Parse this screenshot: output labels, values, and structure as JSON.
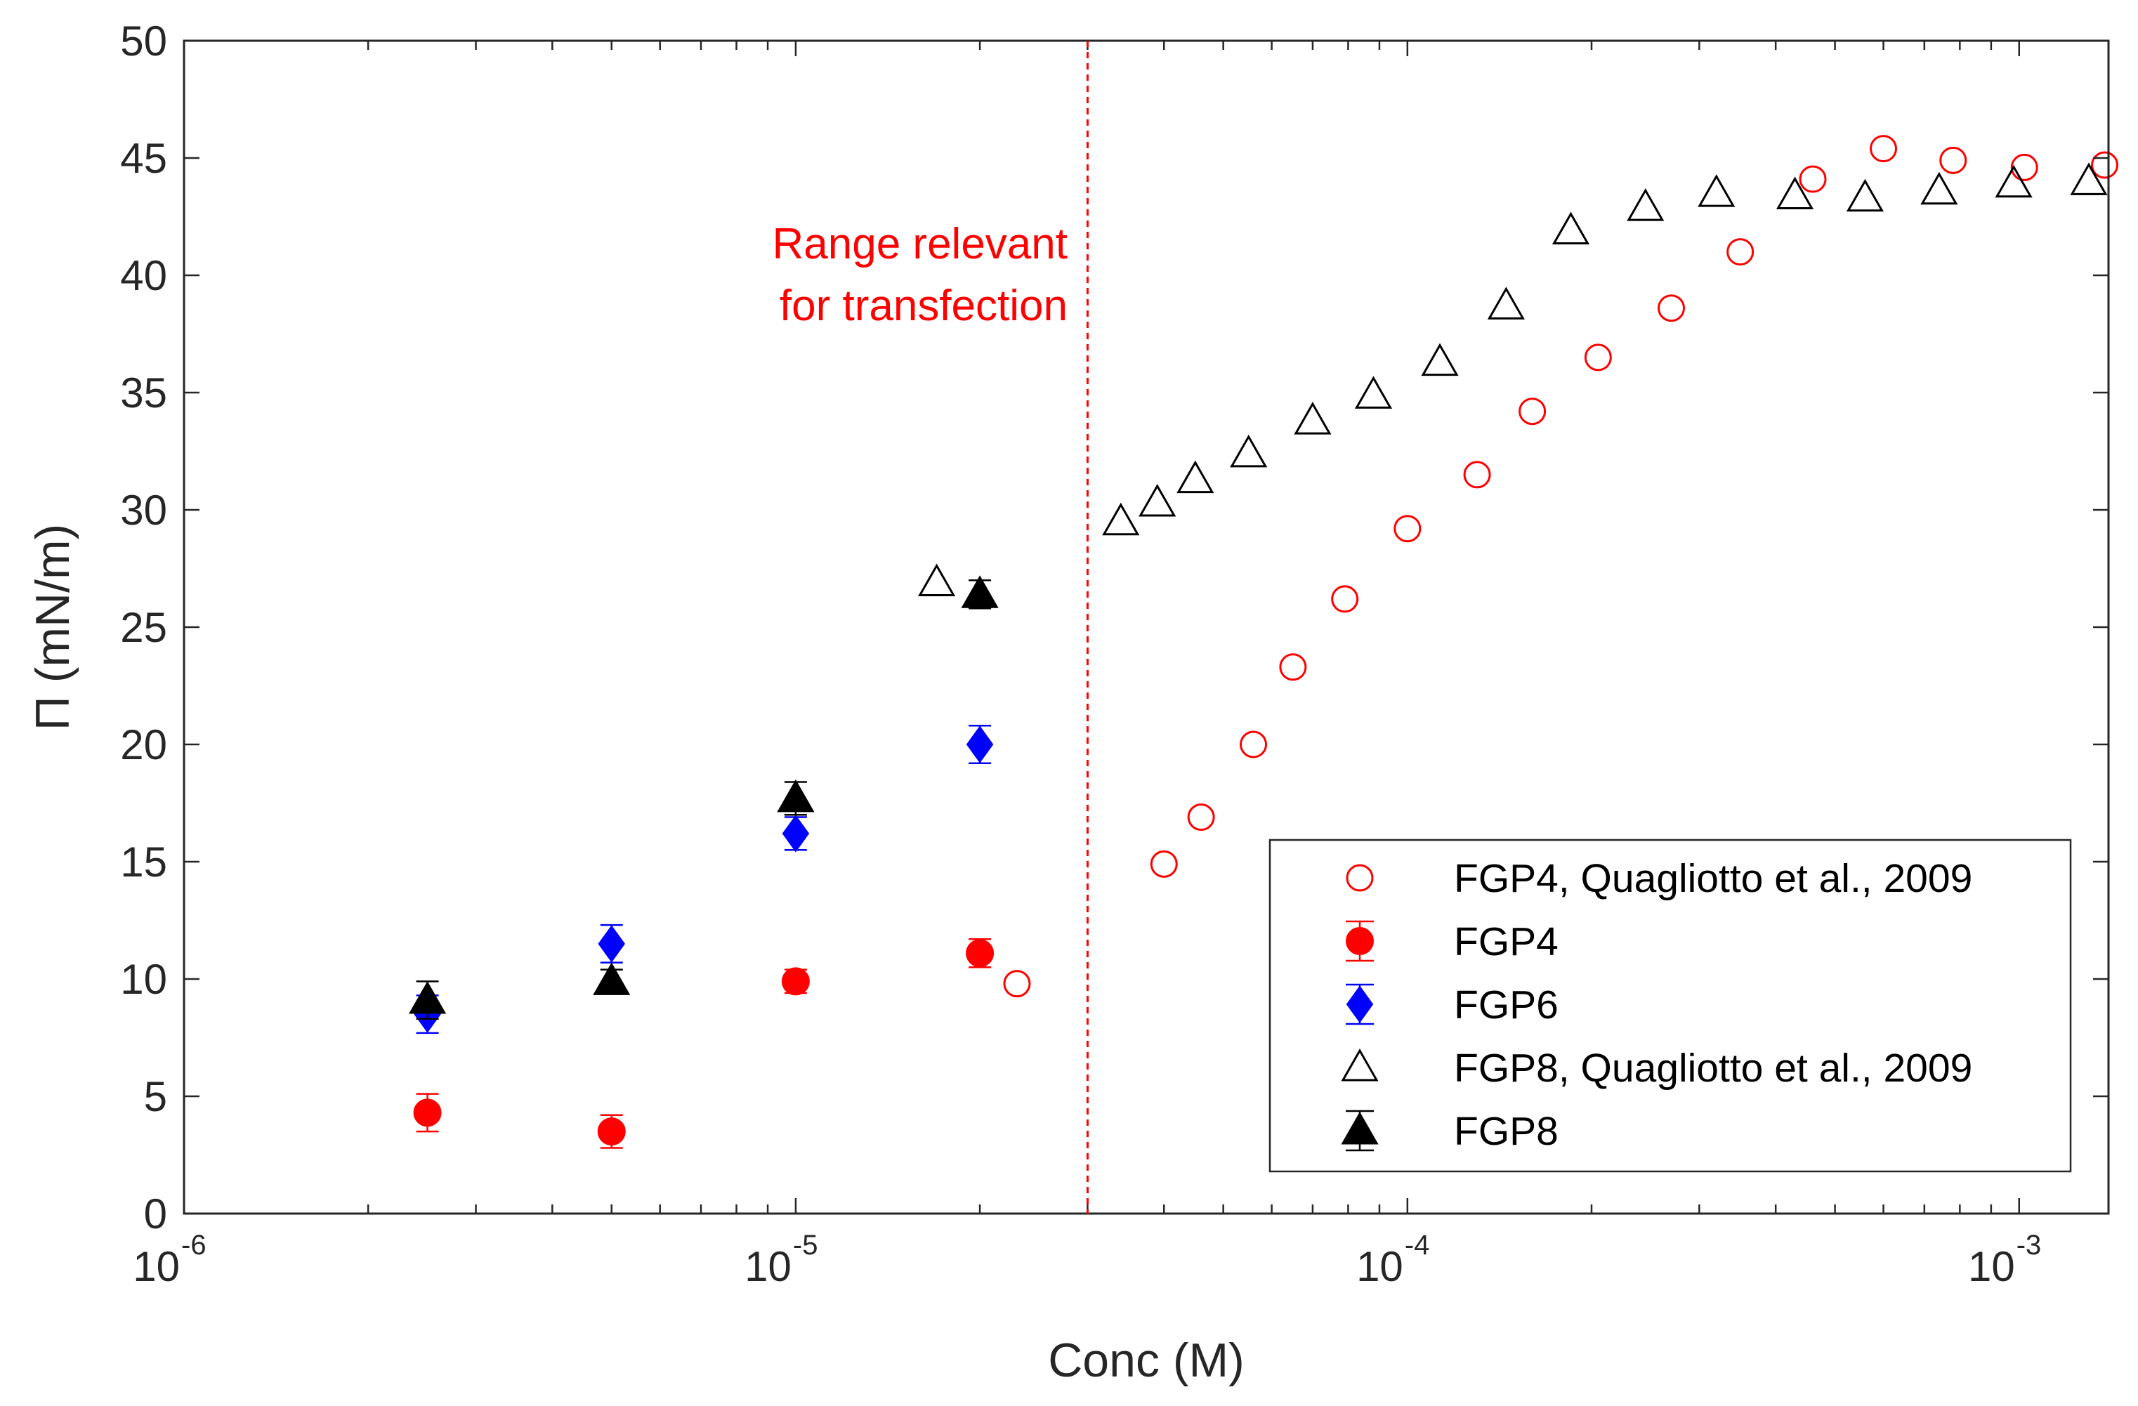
{
  "chart_data": {
    "type": "scatter",
    "title": "",
    "xlabel": "Conc (M)",
    "ylabel": "Π (mN/m)",
    "xscale": "log",
    "xlim": [
      1e-06,
      0.0014
    ],
    "ylim": [
      0,
      50
    ],
    "yticks": [
      0,
      5,
      10,
      15,
      20,
      25,
      30,
      35,
      40,
      45,
      50
    ],
    "xticks": [
      {
        "value": 1e-06,
        "base": "10",
        "exp": "-6"
      },
      {
        "value": 1e-05,
        "base": "10",
        "exp": "-5"
      },
      {
        "value": 0.0001,
        "base": "10",
        "exp": "-4"
      },
      {
        "value": 0.001,
        "base": "10",
        "exp": "-3"
      }
    ],
    "grid": false,
    "legend_position": "bottom-right",
    "annotation": {
      "lines": [
        "Range relevant",
        "for transfection"
      ],
      "x_line": 3e-05
    },
    "series": [
      {
        "name": "FGP4, Quagliotto et al., 2009",
        "marker": "open-circle",
        "color": "#ff0000",
        "points": [
          {
            "x": 2.3e-05,
            "y": 9.8
          },
          {
            "x": 4e-05,
            "y": 14.9
          },
          {
            "x": 4.6e-05,
            "y": 16.9
          },
          {
            "x": 5.6e-05,
            "y": 20.0
          },
          {
            "x": 6.5e-05,
            "y": 23.3
          },
          {
            "x": 7.9e-05,
            "y": 26.2
          },
          {
            "x": 0.0001,
            "y": 29.2
          },
          {
            "x": 0.00013,
            "y": 31.5
          },
          {
            "x": 0.00016,
            "y": 34.2
          },
          {
            "x": 0.000205,
            "y": 36.5
          },
          {
            "x": 0.00027,
            "y": 38.6
          },
          {
            "x": 0.00035,
            "y": 41.0
          },
          {
            "x": 0.00046,
            "y": 44.1
          },
          {
            "x": 0.0006,
            "y": 45.4
          },
          {
            "x": 0.00078,
            "y": 44.9
          },
          {
            "x": 0.00102,
            "y": 44.6
          },
          {
            "x": 0.00138,
            "y": 44.7
          }
        ]
      },
      {
        "name": "FGP4",
        "marker": "filled-circle",
        "color": "#ff0000",
        "points": [
          {
            "x": 2.5e-06,
            "y": 4.3,
            "err": 0.8
          },
          {
            "x": 5e-06,
            "y": 3.5,
            "err": 0.7
          },
          {
            "x": 1e-05,
            "y": 9.9,
            "err": 0.5
          },
          {
            "x": 2e-05,
            "y": 11.1,
            "err": 0.6
          }
        ]
      },
      {
        "name": "FGP6",
        "marker": "filled-diamond",
        "color": "#0000ff",
        "points": [
          {
            "x": 2.5e-06,
            "y": 8.5,
            "err": 0.8
          },
          {
            "x": 5e-06,
            "y": 11.5,
            "err": 0.8
          },
          {
            "x": 1e-05,
            "y": 16.2,
            "err": 0.7
          },
          {
            "x": 2e-05,
            "y": 20.0,
            "err": 0.8
          }
        ]
      },
      {
        "name": "FGP8, Quagliotto et al., 2009",
        "marker": "open-triangle",
        "color": "#000000",
        "points": [
          {
            "x": 1.7e-05,
            "y": 26.9
          },
          {
            "x": 3.4e-05,
            "y": 29.5
          },
          {
            "x": 3.9e-05,
            "y": 30.3
          },
          {
            "x": 4.5e-05,
            "y": 31.3
          },
          {
            "x": 5.5e-05,
            "y": 32.4
          },
          {
            "x": 7e-05,
            "y": 33.8
          },
          {
            "x": 8.8e-05,
            "y": 34.9
          },
          {
            "x": 0.000113,
            "y": 36.3
          },
          {
            "x": 0.000145,
            "y": 38.7
          },
          {
            "x": 0.000185,
            "y": 41.9
          },
          {
            "x": 0.000245,
            "y": 42.9
          },
          {
            "x": 0.00032,
            "y": 43.5
          },
          {
            "x": 0.00043,
            "y": 43.4
          },
          {
            "x": 0.00056,
            "y": 43.3
          },
          {
            "x": 0.00074,
            "y": 43.6
          },
          {
            "x": 0.00098,
            "y": 43.9
          },
          {
            "x": 0.0013,
            "y": 44.0
          }
        ]
      },
      {
        "name": "FGP8",
        "marker": "filled-triangle",
        "color": "#000000",
        "points": [
          {
            "x": 2.5e-06,
            "y": 9.1,
            "err": 0.8
          },
          {
            "x": 5e-06,
            "y": 9.9,
            "err": 0.5
          },
          {
            "x": 1e-05,
            "y": 17.7,
            "err": 0.7
          },
          {
            "x": 2e-05,
            "y": 26.4,
            "err": 0.6
          }
        ]
      }
    ]
  }
}
